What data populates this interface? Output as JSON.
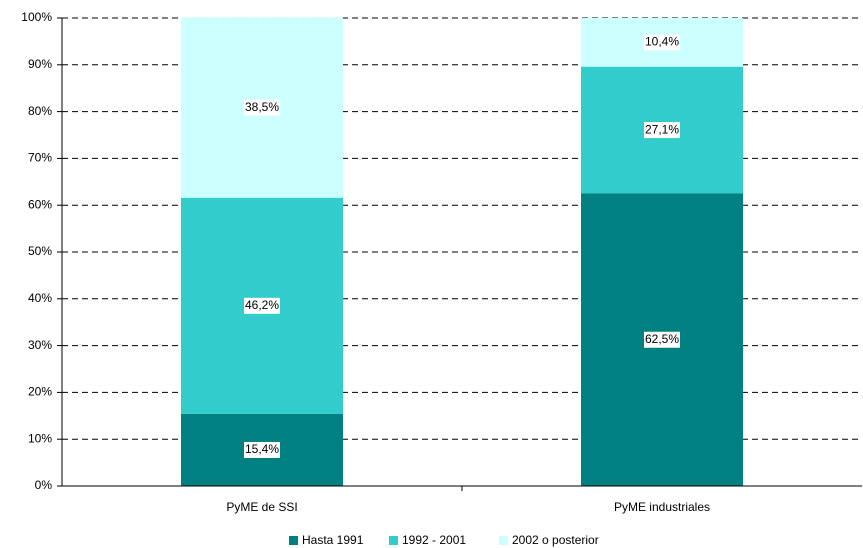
{
  "chart_data": {
    "type": "stacked_bar",
    "categories": [
      "PyME de SSI",
      "PyME industriales"
    ],
    "series": [
      {
        "name": "Hasta 1991",
        "color": "#008080",
        "values": [
          15.4,
          62.5
        ],
        "value_labels": [
          "15,4%",
          "62,5%"
        ]
      },
      {
        "name": "1992 - 2001",
        "color": "#33cccc",
        "values": [
          46.2,
          27.1
        ],
        "value_labels": [
          "46,2%",
          "27,1%"
        ]
      },
      {
        "name": "2002 o posterior",
        "color": "#ccffff",
        "values": [
          38.5,
          10.4
        ],
        "value_labels": [
          "38,5%",
          "10,4%"
        ]
      }
    ],
    "ylim": [
      0,
      100
    ],
    "yticks": [
      {
        "value": 0,
        "label": "0%"
      },
      {
        "value": 10,
        "label": "10%"
      },
      {
        "value": 20,
        "label": "20%"
      },
      {
        "value": 30,
        "label": "30%"
      },
      {
        "value": 40,
        "label": "40%"
      },
      {
        "value": 50,
        "label": "50%"
      },
      {
        "value": 60,
        "label": "60%"
      },
      {
        "value": 70,
        "label": "70%"
      },
      {
        "value": 80,
        "label": "80%"
      },
      {
        "value": 90,
        "label": "90%"
      },
      {
        "value": 100,
        "label": "100%"
      }
    ],
    "grid": true,
    "legend": "bottom"
  }
}
